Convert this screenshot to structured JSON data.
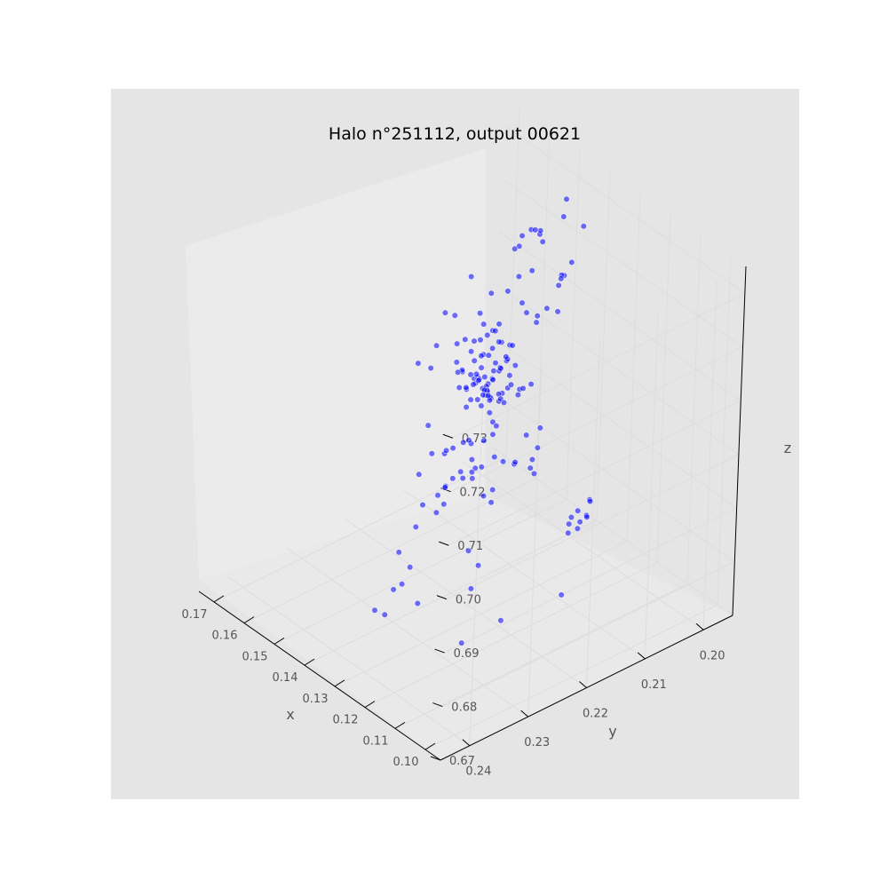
{
  "chart_data": {
    "type": "scatter",
    "projection": "3d",
    "title": "Halo n°251112, output 00621",
    "xlabel": "x",
    "ylabel": "y",
    "zlabel": "z",
    "xlim": [
      0.095,
      0.175
    ],
    "ylim": [
      0.195,
      0.245
    ],
    "zlim": [
      0.67,
      0.735
    ],
    "x_ticks": [
      "0.10",
      "0.11",
      "0.12",
      "0.13",
      "0.14",
      "0.15",
      "0.16",
      "0.17"
    ],
    "y_ticks": [
      "0.20",
      "0.21",
      "0.22",
      "0.23",
      "0.24"
    ],
    "z_ticks": [
      "0.67",
      "0.68",
      "0.69",
      "0.70",
      "0.71",
      "0.72",
      "0.73"
    ],
    "grid": true,
    "series": [
      {
        "color": "#0000ff",
        "points": [
          [
            0.148,
            0.21,
            0.707
          ],
          [
            0.149,
            0.211,
            0.706
          ],
          [
            0.147,
            0.209,
            0.708
          ],
          [
            0.15,
            0.212,
            0.705
          ],
          [
            0.146,
            0.21,
            0.709
          ],
          [
            0.151,
            0.209,
            0.704
          ],
          [
            0.148,
            0.213,
            0.703
          ],
          [
            0.145,
            0.211,
            0.706
          ],
          [
            0.152,
            0.21,
            0.707
          ],
          [
            0.149,
            0.208,
            0.702
          ],
          [
            0.147,
            0.212,
            0.701
          ],
          [
            0.15,
            0.214,
            0.704
          ],
          [
            0.144,
            0.209,
            0.703
          ],
          [
            0.153,
            0.211,
            0.705
          ],
          [
            0.148,
            0.207,
            0.706
          ],
          [
            0.146,
            0.213,
            0.708
          ],
          [
            0.151,
            0.212,
            0.702
          ],
          [
            0.149,
            0.21,
            0.7
          ],
          [
            0.147,
            0.208,
            0.704
          ],
          [
            0.15,
            0.209,
            0.709
          ],
          [
            0.145,
            0.214,
            0.705
          ],
          [
            0.152,
            0.213,
            0.703
          ],
          [
            0.148,
            0.211,
            0.71
          ],
          [
            0.143,
            0.21,
            0.707
          ],
          [
            0.154,
            0.21,
            0.706
          ],
          [
            0.149,
            0.215,
            0.702
          ],
          [
            0.146,
            0.207,
            0.703
          ],
          [
            0.151,
            0.208,
            0.708
          ],
          [
            0.147,
            0.214,
            0.7
          ],
          [
            0.15,
            0.211,
            0.701
          ],
          [
            0.144,
            0.212,
            0.704
          ],
          [
            0.153,
            0.209,
            0.709
          ],
          [
            0.148,
            0.209,
            0.711
          ],
          [
            0.146,
            0.211,
            0.699
          ],
          [
            0.152,
            0.214,
            0.705
          ],
          [
            0.149,
            0.206,
            0.705
          ],
          [
            0.128,
            0.222,
            0.716
          ],
          [
            0.129,
            0.223,
            0.715
          ],
          [
            0.127,
            0.221,
            0.717
          ],
          [
            0.13,
            0.224,
            0.714
          ],
          [
            0.126,
            0.222,
            0.713
          ],
          [
            0.131,
            0.221,
            0.716
          ],
          [
            0.128,
            0.225,
            0.712
          ],
          [
            0.125,
            0.223,
            0.715
          ],
          [
            0.132,
            0.223,
            0.713
          ],
          [
            0.129,
            0.22,
            0.714
          ],
          [
            0.127,
            0.224,
            0.718
          ],
          [
            0.13,
            0.222,
            0.711
          ],
          [
            0.124,
            0.221,
            0.714
          ],
          [
            0.133,
            0.224,
            0.716
          ],
          [
            0.126,
            0.225,
            0.717
          ],
          [
            0.131,
            0.22,
            0.712
          ],
          [
            0.113,
            0.226,
            0.722
          ],
          [
            0.114,
            0.227,
            0.721
          ],
          [
            0.112,
            0.226,
            0.723
          ],
          [
            0.115,
            0.228,
            0.72
          ],
          [
            0.111,
            0.225,
            0.722
          ],
          [
            0.113,
            0.229,
            0.719
          ],
          [
            0.116,
            0.226,
            0.724
          ],
          [
            0.112,
            0.228,
            0.721
          ],
          [
            0.108,
            0.231,
            0.718
          ],
          [
            0.109,
            0.232,
            0.717
          ],
          [
            0.11,
            0.23,
            0.719
          ],
          [
            0.107,
            0.231,
            0.72
          ],
          [
            0.104,
            0.236,
            0.716
          ],
          [
            0.103,
            0.237,
            0.715
          ],
          [
            0.102,
            0.236,
            0.717
          ],
          [
            0.105,
            0.238,
            0.716
          ],
          [
            0.1,
            0.235,
            0.713
          ],
          [
            0.101,
            0.236,
            0.712
          ],
          [
            0.135,
            0.205,
            0.723
          ],
          [
            0.134,
            0.206,
            0.724
          ],
          [
            0.136,
            0.205,
            0.722
          ],
          [
            0.133,
            0.207,
            0.723
          ],
          [
            0.14,
            0.215,
            0.705
          ],
          [
            0.139,
            0.216,
            0.706
          ],
          [
            0.138,
            0.217,
            0.704
          ],
          [
            0.141,
            0.216,
            0.707
          ],
          [
            0.118,
            0.229,
            0.706
          ],
          [
            0.119,
            0.23,
            0.705
          ],
          [
            0.12,
            0.228,
            0.707
          ],
          [
            0.133,
            0.219,
            0.709
          ],
          [
            0.132,
            0.22,
            0.71
          ],
          [
            0.134,
            0.218,
            0.708
          ],
          [
            0.121,
            0.222,
            0.703
          ],
          [
            0.122,
            0.223,
            0.704
          ],
          [
            0.099,
            0.219,
            0.7
          ],
          [
            0.1,
            0.22,
            0.701
          ],
          [
            0.098,
            0.221,
            0.699
          ],
          [
            0.101,
            0.219,
            0.698
          ],
          [
            0.1,
            0.218,
            0.702
          ],
          [
            0.099,
            0.222,
            0.7
          ],
          [
            0.102,
            0.22,
            0.699
          ],
          [
            0.097,
            0.22,
            0.701
          ],
          [
            0.101,
            0.221,
            0.697
          ],
          [
            0.098,
            0.219,
            0.703
          ],
          [
            0.16,
            0.196,
            0.716
          ],
          [
            0.161,
            0.197,
            0.717
          ],
          [
            0.159,
            0.196,
            0.715
          ],
          [
            0.162,
            0.198,
            0.716
          ],
          [
            0.158,
            0.197,
            0.718
          ],
          [
            0.161,
            0.199,
            0.715
          ],
          [
            0.118,
            0.217,
            0.73
          ],
          [
            0.12,
            0.214,
            0.727
          ],
          [
            0.15,
            0.197,
            0.727
          ],
          [
            0.147,
            0.199,
            0.726
          ],
          [
            0.146,
            0.196,
            0.723
          ],
          [
            0.156,
            0.199,
            0.72
          ],
          [
            0.155,
            0.203,
            0.719
          ],
          [
            0.142,
            0.2,
            0.72
          ],
          [
            0.151,
            0.202,
            0.716
          ],
          [
            0.153,
            0.205,
            0.713
          ],
          [
            0.157,
            0.201,
            0.712
          ],
          [
            0.143,
            0.207,
            0.714
          ],
          [
            0.139,
            0.21,
            0.719
          ],
          [
            0.136,
            0.209,
            0.716
          ],
          [
            0.145,
            0.204,
            0.711
          ],
          [
            0.155,
            0.213,
            0.712
          ],
          [
            0.158,
            0.207,
            0.708
          ],
          [
            0.144,
            0.217,
            0.714
          ],
          [
            0.141,
            0.22,
            0.716
          ],
          [
            0.138,
            0.213,
            0.711
          ],
          [
            0.155,
            0.216,
            0.708
          ],
          [
            0.16,
            0.212,
            0.71
          ],
          [
            0.157,
            0.218,
            0.705
          ],
          [
            0.151,
            0.219,
            0.707
          ],
          [
            0.134,
            0.216,
            0.712
          ],
          [
            0.13,
            0.218,
            0.709
          ],
          [
            0.127,
            0.219,
            0.71
          ],
          [
            0.124,
            0.216,
            0.713
          ],
          [
            0.121,
            0.219,
            0.715
          ],
          [
            0.117,
            0.222,
            0.717
          ],
          [
            0.115,
            0.219,
            0.71
          ],
          [
            0.112,
            0.223,
            0.712
          ],
          [
            0.11,
            0.226,
            0.709
          ],
          [
            0.106,
            0.228,
            0.712
          ],
          [
            0.109,
            0.223,
            0.706
          ],
          [
            0.114,
            0.221,
            0.704
          ],
          [
            0.119,
            0.218,
            0.702
          ],
          [
            0.123,
            0.215,
            0.701
          ],
          [
            0.126,
            0.225,
            0.706
          ],
          [
            0.123,
            0.228,
            0.709
          ],
          [
            0.117,
            0.233,
            0.713
          ],
          [
            0.113,
            0.235,
            0.71
          ],
          [
            0.104,
            0.233,
            0.708
          ],
          [
            0.106,
            0.24,
            0.714
          ],
          [
            0.11,
            0.238,
            0.708
          ],
          [
            0.116,
            0.236,
            0.703
          ],
          [
            0.125,
            0.231,
            0.7
          ],
          [
            0.133,
            0.228,
            0.703
          ],
          [
            0.132,
            0.226,
            0.696
          ],
          [
            0.14,
            0.222,
            0.697
          ],
          [
            0.145,
            0.219,
            0.694
          ],
          [
            0.128,
            0.233,
            0.694
          ],
          [
            0.122,
            0.237,
            0.691
          ],
          [
            0.117,
            0.241,
            0.692
          ],
          [
            0.108,
            0.243,
            0.693
          ],
          [
            0.115,
            0.23,
            0.686
          ],
          [
            0.139,
            0.226,
            0.69
          ],
          [
            0.135,
            0.232,
            0.686
          ],
          [
            0.124,
            0.24,
            0.683
          ],
          [
            0.131,
            0.238,
            0.68
          ],
          [
            0.105,
            0.23,
            0.684
          ],
          [
            0.11,
            0.234,
            0.68
          ],
          [
            0.148,
            0.222,
            0.69
          ],
          [
            0.153,
            0.218,
            0.695
          ],
          [
            0.14,
            0.23,
            0.676
          ],
          [
            0.12,
            0.228,
            0.69
          ],
          [
            0.1,
            0.237,
            0.7
          ],
          [
            0.095,
            0.225,
            0.69
          ],
          [
            0.136,
            0.22,
            0.7
          ],
          [
            0.165,
            0.205,
            0.711
          ],
          [
            0.162,
            0.203,
            0.708
          ]
        ]
      }
    ]
  }
}
